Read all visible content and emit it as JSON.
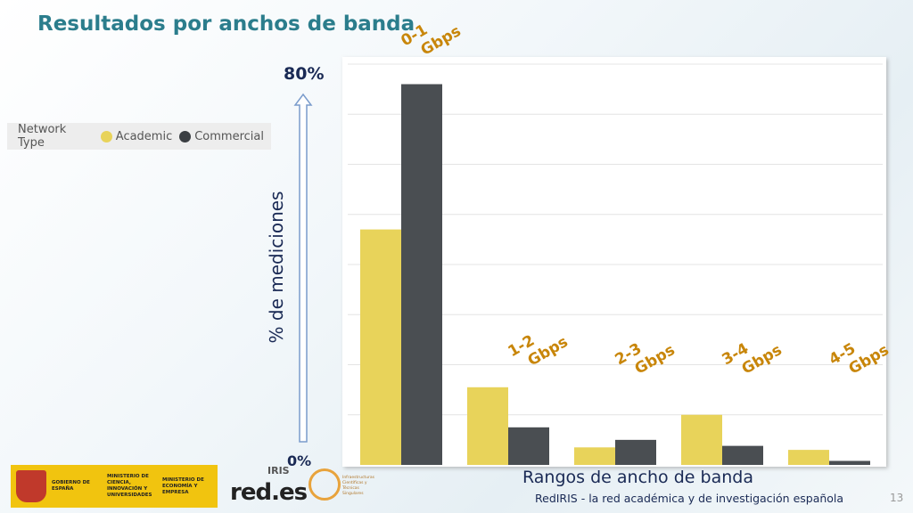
{
  "title": "Resultados por anchos de banda",
  "legend": {
    "label": "Network Type",
    "items": [
      {
        "name": "Academic",
        "color": "#e8d35a"
      },
      {
        "name": "Commercial",
        "color": "#4a4e52"
      }
    ]
  },
  "y_top_label": "80%",
  "y_bottom_label": "0%",
  "y_axis_label": "% de mediciones",
  "x_axis_label": "Rangos de ancho de banda",
  "footer": "RedIRIS - la red académica y de investigación española",
  "page_number": "13",
  "logos": {
    "ministry_text": "GOBIERNO DE ESPAÑA",
    "ministry1": "MINISTERIO DE CIENCIA, INNOVACIÓN Y UNIVERSIDADES",
    "ministry2": "MINISTERIO DE ECONOMÍA Y EMPRESA",
    "rede": "red.es",
    "rediris": "IRIS",
    "icts": "Infraestructuras Científicas y Técnicas Singulares"
  },
  "chart_data": {
    "type": "bar",
    "categories": [
      "0-1 Gbps",
      "1-2 Gbps",
      "2-3 Gbps",
      "3-4 Gbps",
      "4-5 Gbps"
    ],
    "category_labels": [
      [
        "0-1",
        "Gbps"
      ],
      [
        "1-2",
        "Gbps"
      ],
      [
        "2-3",
        "Gbps"
      ],
      [
        "3-4",
        "Gbps"
      ],
      [
        "4-5",
        "Gbps"
      ]
    ],
    "series": [
      {
        "name": "Academic",
        "color": "#e8d35a",
        "values": [
          47,
          15.5,
          3.5,
          10,
          3.0
        ]
      },
      {
        "name": "Commercial",
        "color": "#4a4e52",
        "values": [
          76,
          7.5,
          5.0,
          3.8,
          0.8
        ]
      }
    ],
    "ylim": [
      0,
      80
    ],
    "ylabel": "% de mediciones",
    "xlabel": "Rangos de ancho de banda",
    "grid": true
  }
}
